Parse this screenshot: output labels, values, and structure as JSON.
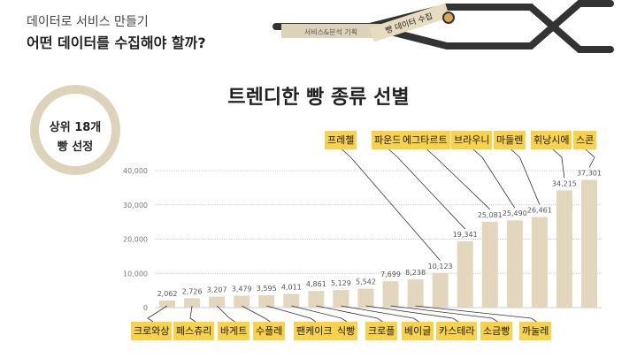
{
  "header": {
    "subtitle": "데이터로 서비스 만들기",
    "headline": "어떤 데이터를 수집해야 할까?",
    "process_step_left": "서비스&분석 기획",
    "process_step_current": "빵 데이터 수집"
  },
  "badge": {
    "line1": "상위 18개",
    "line2": "빵 선정"
  },
  "colors": {
    "bar": "#e2d6bd",
    "label_bg": "#f8d24a",
    "ring": "#ddd3b9",
    "tube": "#333333"
  },
  "chart_data": {
    "type": "bar",
    "title": "트렌디한 빵 종류 선별",
    "categories": [
      "크로와상",
      "페스츄리",
      "바게트",
      "수플레",
      "팬케이크",
      "식빵",
      "크로플",
      "베이글",
      "카스테라",
      "소금빵",
      "까눌레",
      "프레첼",
      "파운드",
      "에그타르트",
      "브라우니",
      "마들렌",
      "휘낭시에",
      "스콘"
    ],
    "values": [
      2062,
      2726,
      3207,
      3479,
      3595,
      4011,
      4861,
      5129,
      5542,
      7699,
      8238,
      10123,
      19341,
      25081,
      25490,
      26461,
      34215,
      37301
    ],
    "value_labels": [
      "2,062",
      "2,726",
      "3,207",
      "3,479",
      "3,595",
      "4,011",
      "4,861",
      "5,129",
      "5,542",
      "7,699",
      "8,238",
      "10,123",
      "19,341",
      "25,081",
      "25,490",
      "26,461",
      "34,215",
      "37,301"
    ],
    "ylim": [
      0,
      40000
    ],
    "yticks": [
      0,
      10000,
      20000,
      30000,
      40000
    ],
    "ytick_labels": [
      "0",
      "10,000",
      "20,000",
      "30,000",
      "40,000"
    ],
    "grid": true
  }
}
